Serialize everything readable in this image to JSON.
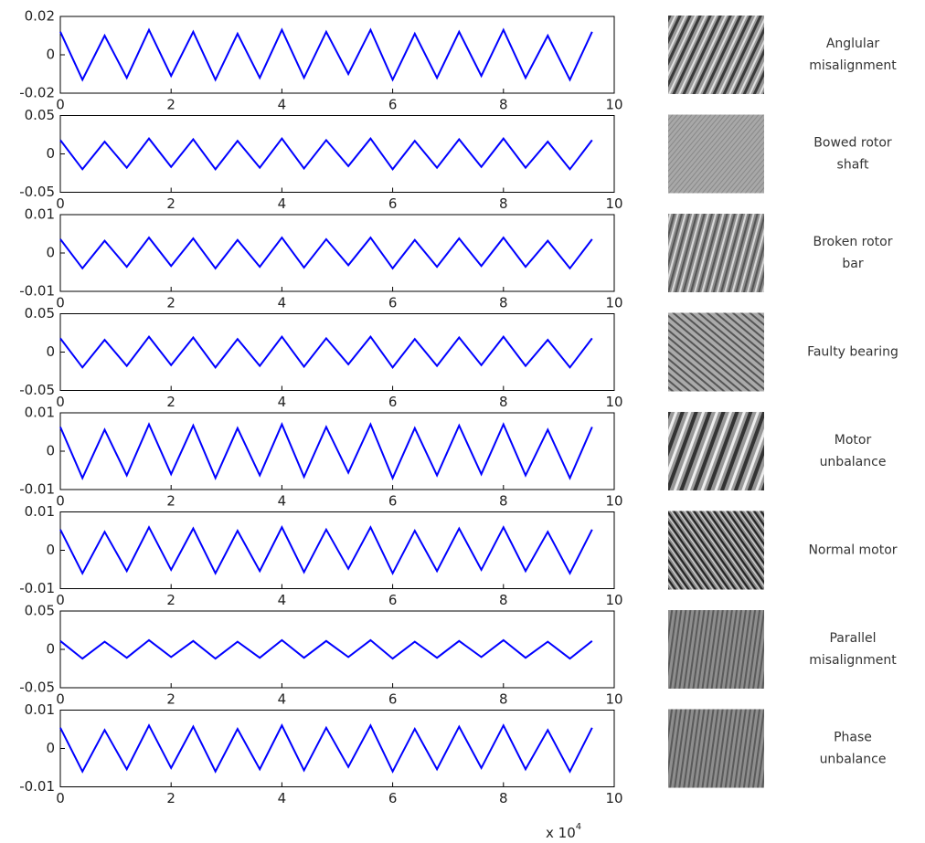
{
  "chart_data": [
    {
      "type": "line",
      "label": [
        "Anglular",
        "misalignment"
      ],
      "xlim": [
        0,
        100000
      ],
      "xticks": [
        {
          "value": 0,
          "label": "0"
        },
        {
          "value": 20000,
          "label": "2"
        },
        {
          "value": 40000,
          "label": "4"
        },
        {
          "value": 60000,
          "label": "6"
        },
        {
          "value": 80000,
          "label": "8"
        },
        {
          "value": 100000,
          "label": "10"
        }
      ],
      "ylim": [
        -0.02,
        0.02
      ],
      "yticks": [
        -0.02,
        0,
        0.02
      ],
      "color": "#0000ff",
      "x": [
        0,
        4000,
        8000,
        12000,
        16000,
        20000,
        24000,
        28000,
        32000,
        36000,
        40000,
        44000,
        48000,
        52000,
        56000,
        60000,
        64000,
        68000,
        72000,
        76000,
        80000,
        84000,
        88000,
        92000,
        96000
      ],
      "values": [
        0.012,
        -0.013,
        0.01,
        -0.012,
        0.013,
        -0.011,
        0.012,
        -0.013,
        0.011,
        -0.012,
        0.013,
        -0.012,
        0.012,
        -0.01,
        0.013,
        -0.013,
        0.011,
        -0.012,
        0.012,
        -0.011,
        0.013,
        -0.012,
        0.01,
        -0.013,
        0.012
      ]
    },
    {
      "type": "line",
      "label": [
        "Bowed rotor",
        "shaft"
      ],
      "xlim": [
        0,
        100000
      ],
      "xticks": [
        {
          "value": 0,
          "label": "0"
        },
        {
          "value": 20000,
          "label": "2"
        },
        {
          "value": 40000,
          "label": "4"
        },
        {
          "value": 60000,
          "label": "6"
        },
        {
          "value": 80000,
          "label": "8"
        },
        {
          "value": 100000,
          "label": "10"
        }
      ],
      "ylim": [
        -0.05,
        0.05
      ],
      "yticks": [
        -0.05,
        0,
        0.05
      ],
      "color": "#0000ff",
      "x": [
        0,
        4000,
        8000,
        12000,
        16000,
        20000,
        24000,
        28000,
        32000,
        36000,
        40000,
        44000,
        48000,
        52000,
        56000,
        60000,
        64000,
        68000,
        72000,
        76000,
        80000,
        84000,
        88000,
        92000,
        96000
      ],
      "values": [
        0.018,
        -0.02,
        0.016,
        -0.018,
        0.02,
        -0.017,
        0.019,
        -0.02,
        0.017,
        -0.018,
        0.02,
        -0.019,
        0.018,
        -0.016,
        0.02,
        -0.02,
        0.017,
        -0.018,
        0.019,
        -0.017,
        0.02,
        -0.018,
        0.016,
        -0.02,
        0.018
      ]
    },
    {
      "type": "line",
      "label": [
        "Broken rotor",
        "bar"
      ],
      "xlim": [
        0,
        100000
      ],
      "xticks": [
        {
          "value": 0,
          "label": "0"
        },
        {
          "value": 20000,
          "label": "2"
        },
        {
          "value": 40000,
          "label": "4"
        },
        {
          "value": 60000,
          "label": "6"
        },
        {
          "value": 80000,
          "label": "8"
        },
        {
          "value": 100000,
          "label": "10"
        }
      ],
      "ylim": [
        -0.01,
        0.01
      ],
      "yticks": [
        -0.01,
        0,
        0.01
      ],
      "color": "#0000ff",
      "x": [
        0,
        4000,
        8000,
        12000,
        16000,
        20000,
        24000,
        28000,
        32000,
        36000,
        40000,
        44000,
        48000,
        52000,
        56000,
        60000,
        64000,
        68000,
        72000,
        76000,
        80000,
        84000,
        88000,
        92000,
        96000
      ],
      "values": [
        0.0036,
        -0.004,
        0.0032,
        -0.0036,
        0.004,
        -0.0034,
        0.0038,
        -0.004,
        0.0034,
        -0.0036,
        0.004,
        -0.0038,
        0.0036,
        -0.0032,
        0.004,
        -0.004,
        0.0034,
        -0.0036,
        0.0038,
        -0.0034,
        0.004,
        -0.0036,
        0.0032,
        -0.004,
        0.0036
      ]
    },
    {
      "type": "line",
      "label": [
        "Faulty bearing"
      ],
      "xlim": [
        0,
        100000
      ],
      "xticks": [
        {
          "value": 0,
          "label": "0"
        },
        {
          "value": 20000,
          "label": "2"
        },
        {
          "value": 40000,
          "label": "4"
        },
        {
          "value": 60000,
          "label": "6"
        },
        {
          "value": 80000,
          "label": "8"
        },
        {
          "value": 100000,
          "label": "10"
        }
      ],
      "ylim": [
        -0.05,
        0.05
      ],
      "yticks": [
        -0.05,
        0,
        0.05
      ],
      "color": "#0000ff",
      "x": [
        0,
        4000,
        8000,
        12000,
        16000,
        20000,
        24000,
        28000,
        32000,
        36000,
        40000,
        44000,
        48000,
        52000,
        56000,
        60000,
        64000,
        68000,
        72000,
        76000,
        80000,
        84000,
        88000,
        92000,
        96000
      ],
      "values": [
        0.018,
        -0.02,
        0.016,
        -0.018,
        0.02,
        -0.017,
        0.019,
        -0.02,
        0.017,
        -0.018,
        0.02,
        -0.019,
        0.018,
        -0.016,
        0.02,
        -0.02,
        0.017,
        -0.018,
        0.019,
        -0.017,
        0.02,
        -0.018,
        0.016,
        -0.02,
        0.018
      ]
    },
    {
      "type": "line",
      "label": [
        "Motor",
        "unbalance"
      ],
      "xlim": [
        0,
        100000
      ],
      "xticks": [
        {
          "value": 0,
          "label": "0"
        },
        {
          "value": 20000,
          "label": "2"
        },
        {
          "value": 40000,
          "label": "4"
        },
        {
          "value": 60000,
          "label": "6"
        },
        {
          "value": 80000,
          "label": "8"
        },
        {
          "value": 100000,
          "label": "10"
        }
      ],
      "ylim": [
        -0.01,
        0.01
      ],
      "yticks": [
        -0.01,
        0,
        0.01
      ],
      "color": "#0000ff",
      "x": [
        0,
        4000,
        8000,
        12000,
        16000,
        20000,
        24000,
        28000,
        32000,
        36000,
        40000,
        44000,
        48000,
        52000,
        56000,
        60000,
        64000,
        68000,
        72000,
        76000,
        80000,
        84000,
        88000,
        92000,
        96000
      ],
      "values": [
        0.0063,
        -0.007,
        0.0056,
        -0.0063,
        0.007,
        -0.006,
        0.0067,
        -0.007,
        0.006,
        -0.0063,
        0.007,
        -0.0067,
        0.0063,
        -0.0056,
        0.007,
        -0.007,
        0.006,
        -0.0063,
        0.0067,
        -0.006,
        0.007,
        -0.0063,
        0.0056,
        -0.007,
        0.0063
      ]
    },
    {
      "type": "line",
      "label": [
        "Normal motor"
      ],
      "xlim": [
        0,
        100000
      ],
      "xticks": [
        {
          "value": 0,
          "label": "0"
        },
        {
          "value": 20000,
          "label": "2"
        },
        {
          "value": 40000,
          "label": "4"
        },
        {
          "value": 60000,
          "label": "6"
        },
        {
          "value": 80000,
          "label": "8"
        },
        {
          "value": 100000,
          "label": "10"
        }
      ],
      "ylim": [
        -0.01,
        0.01
      ],
      "yticks": [
        -0.01,
        0,
        0.01
      ],
      "color": "#0000ff",
      "x": [
        0,
        4000,
        8000,
        12000,
        16000,
        20000,
        24000,
        28000,
        32000,
        36000,
        40000,
        44000,
        48000,
        52000,
        56000,
        60000,
        64000,
        68000,
        72000,
        76000,
        80000,
        84000,
        88000,
        92000,
        96000
      ],
      "values": [
        0.0054,
        -0.006,
        0.0048,
        -0.0054,
        0.006,
        -0.0051,
        0.0057,
        -0.006,
        0.0051,
        -0.0054,
        0.006,
        -0.0057,
        0.0054,
        -0.0048,
        0.006,
        -0.006,
        0.0051,
        -0.0054,
        0.0057,
        -0.0051,
        0.006,
        -0.0054,
        0.0048,
        -0.006,
        0.0054
      ]
    },
    {
      "type": "line",
      "label": [
        "Parallel",
        "misalignment"
      ],
      "xlim": [
        0,
        100000
      ],
      "xticks": [
        {
          "value": 0,
          "label": "0"
        },
        {
          "value": 20000,
          "label": "2"
        },
        {
          "value": 40000,
          "label": "4"
        },
        {
          "value": 60000,
          "label": "6"
        },
        {
          "value": 80000,
          "label": "8"
        },
        {
          "value": 100000,
          "label": "10"
        }
      ],
      "ylim": [
        -0.05,
        0.05
      ],
      "yticks": [
        -0.05,
        0,
        0.05
      ],
      "color": "#0000ff",
      "x": [
        0,
        4000,
        8000,
        12000,
        16000,
        20000,
        24000,
        28000,
        32000,
        36000,
        40000,
        44000,
        48000,
        52000,
        56000,
        60000,
        64000,
        68000,
        72000,
        76000,
        80000,
        84000,
        88000,
        92000,
        96000
      ],
      "values": [
        0.011,
        -0.012,
        0.01,
        -0.011,
        0.012,
        -0.01,
        0.011,
        -0.012,
        0.01,
        -0.011,
        0.012,
        -0.011,
        0.011,
        -0.01,
        0.012,
        -0.012,
        0.01,
        -0.011,
        0.011,
        -0.01,
        0.012,
        -0.011,
        0.01,
        -0.012,
        0.011
      ]
    },
    {
      "type": "line",
      "label": [
        "Phase",
        "unbalance"
      ],
      "xlim": [
        0,
        100000
      ],
      "xticks": [
        {
          "value": 0,
          "label": "0"
        },
        {
          "value": 20000,
          "label": "2"
        },
        {
          "value": 40000,
          "label": "4"
        },
        {
          "value": 60000,
          "label": "6"
        },
        {
          "value": 80000,
          "label": "8"
        },
        {
          "value": 100000,
          "label": "10"
        }
      ],
      "ylim": [
        -0.01,
        0.01
      ],
      "yticks": [
        -0.01,
        0,
        0.01
      ],
      "color": "#0000ff",
      "x": [
        0,
        4000,
        8000,
        12000,
        16000,
        20000,
        24000,
        28000,
        32000,
        36000,
        40000,
        44000,
        48000,
        52000,
        56000,
        60000,
        64000,
        68000,
        72000,
        76000,
        80000,
        84000,
        88000,
        92000,
        96000
      ],
      "values": [
        0.0054,
        -0.006,
        0.0048,
        -0.0054,
        0.006,
        -0.0051,
        0.0057,
        -0.006,
        0.0051,
        -0.0054,
        0.006,
        -0.0057,
        0.0054,
        -0.0048,
        0.006,
        -0.006,
        0.0051,
        -0.0054,
        0.0057,
        -0.0051,
        0.006,
        -0.0054,
        0.0048,
        -0.006,
        0.0054
      ],
      "x_scale_label": {
        "base": "x 10",
        "exponent": "4"
      }
    }
  ]
}
